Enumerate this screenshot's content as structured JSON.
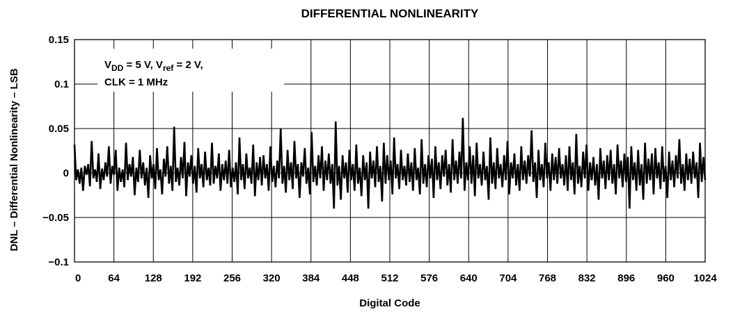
{
  "chart_data": {
    "type": "line",
    "title": "DIFFERENTIAL NONLINEARITY",
    "xlabel": "Digital Code",
    "ylabel": "DNL – Differential Nonlinearity – LSB",
    "xlim": [
      0,
      1024
    ],
    "ylim": [
      -0.1,
      0.15
    ],
    "x_ticks": [
      0,
      64,
      128,
      192,
      256,
      320,
      384,
      448,
      512,
      576,
      640,
      704,
      768,
      832,
      896,
      960,
      1024
    ],
    "x_tick_labels": [
      "0",
      "64",
      "128",
      "192",
      "256",
      "320",
      "384",
      "448",
      "512",
      "576",
      "640",
      "704",
      "768",
      "832",
      "896",
      "960",
      "1024"
    ],
    "y_ticks": [
      0.15,
      0.1,
      0.05,
      0,
      -0.05,
      -0.1
    ],
    "y_tick_labels": [
      "0.15",
      "0.1",
      "0.05",
      "0",
      "−0.05",
      "−0.1"
    ],
    "grid": true,
    "annotation": {
      "line1": {
        "v1": "V",
        "sub1": "DD",
        "mid": " = 5 V, V",
        "sub2": "ref",
        "end": " = 2 V,"
      },
      "line2": "CLK = 1 MHz"
    },
    "series": [
      {
        "values": [
          0.032,
          -0.008,
          0.004,
          -0.012,
          0.006,
          -0.02,
          0.008,
          -0.002,
          0.01,
          -0.015,
          0.036,
          -0.006,
          0.004,
          -0.01,
          0.022,
          -0.018,
          0.005,
          -0.008,
          0.012,
          -0.004,
          0.03,
          -0.012,
          0.008,
          -0.002,
          0.026,
          -0.02,
          0.006,
          -0.01,
          0.004,
          -0.016,
          0.034,
          -0.008,
          0.01,
          -0.004,
          0.018,
          -0.025,
          0.006,
          -0.01,
          0.026,
          -0.006,
          0.012,
          -0.014,
          0.006,
          -0.028,
          0.02,
          -0.006,
          0.01,
          -0.018,
          0.028,
          -0.008,
          0.004,
          -0.024,
          0.016,
          -0.004,
          0.03,
          -0.012,
          0.008,
          -0.02,
          0.052,
          -0.01,
          0.006,
          -0.014,
          0.018,
          -0.006,
          0.035,
          -0.026,
          0.012,
          -0.004,
          0.02,
          -0.012,
          0.008,
          -0.022,
          0.028,
          -0.006,
          0.01,
          -0.016,
          0.024,
          -0.008,
          0.006,
          -0.014,
          0.034,
          -0.012,
          0.008,
          -0.006,
          0.022,
          -0.02,
          0.01,
          -0.008,
          0.014,
          -0.012,
          0.026,
          -0.016,
          0.006,
          -0.01,
          0.012,
          -0.024,
          0.04,
          -0.008,
          0.01,
          -0.018,
          0.022,
          -0.006,
          0.006,
          -0.012,
          0.032,
          -0.026,
          0.012,
          -0.008,
          0.018,
          -0.014,
          0.02,
          -0.006,
          0.01,
          -0.02,
          0.03,
          -0.01,
          0.008,
          -0.016,
          0.014,
          -0.006,
          0.05,
          -0.012,
          0.008,
          -0.022,
          0.026,
          -0.008,
          0.012,
          -0.018,
          0.036,
          -0.006,
          0.01,
          -0.028,
          0.012,
          -0.004,
          0.028,
          -0.012,
          0.006,
          -0.024,
          0.046,
          -0.01,
          0.008,
          -0.014,
          0.02,
          -0.006,
          0.03,
          -0.02,
          0.014,
          -0.008,
          0.022,
          -0.012,
          0.01,
          -0.04,
          0.058,
          -0.014,
          0.008,
          -0.03,
          0.02,
          -0.006,
          0.012,
          -0.022,
          0.026,
          -0.008,
          0.01,
          -0.02,
          0.032,
          -0.012,
          0.006,
          -0.026,
          0.02,
          -0.008,
          0.012,
          -0.04,
          0.024,
          -0.006,
          0.014,
          -0.016,
          0.03,
          -0.01,
          0.008,
          -0.032,
          0.034,
          -0.012,
          0.02,
          -0.008,
          0.014,
          -0.024,
          0.04,
          -0.006,
          0.01,
          -0.018,
          0.026,
          -0.008,
          0.008,
          -0.014,
          0.022,
          -0.01,
          0.012,
          -0.02,
          0.028,
          -0.008,
          0.006,
          -0.024,
          0.038,
          -0.012,
          0.01,
          -0.016,
          0.02,
          -0.006,
          0.016,
          -0.028,
          0.03,
          -0.008,
          0.012,
          -0.018,
          0.02,
          -0.004,
          0.026,
          -0.014,
          0.01,
          -0.022,
          0.038,
          -0.008,
          0.014,
          -0.012,
          0.024,
          -0.006,
          0.062,
          -0.02,
          0.012,
          -0.008,
          0.03,
          -0.012,
          0.02,
          -0.026,
          0.034,
          -0.006,
          0.01,
          -0.014,
          0.024,
          -0.008,
          0.008,
          -0.03,
          0.04,
          -0.012,
          0.012,
          -0.018,
          0.028,
          -0.006,
          0.01,
          -0.016,
          0.02,
          -0.008,
          0.036,
          -0.024,
          0.012,
          -0.006,
          0.022,
          -0.014,
          0.01,
          -0.02,
          0.03,
          -0.008,
          0.014,
          -0.012,
          0.02,
          -0.004,
          0.048,
          -0.01,
          0.012,
          -0.028,
          0.026,
          -0.008,
          0.01,
          -0.016,
          0.034,
          -0.006,
          0.012,
          -0.02,
          0.022,
          -0.008,
          0.018,
          -0.012,
          0.028,
          -0.006,
          0.01,
          -0.014,
          0.02,
          -0.02,
          0.03,
          -0.008,
          0.012,
          -0.024,
          0.044,
          -0.012,
          0.008,
          -0.016,
          0.024,
          -0.006,
          0.032,
          -0.02,
          0.012,
          -0.008,
          0.018,
          -0.014,
          0.01,
          -0.03,
          0.028,
          -0.006,
          0.014,
          -0.018,
          0.02,
          -0.008,
          0.026,
          -0.012,
          0.01,
          -0.024,
          0.032,
          -0.006,
          0.014,
          -0.016,
          0.022,
          -0.01,
          0.018,
          -0.04,
          0.03,
          -0.008,
          0.012,
          -0.02,
          0.026,
          -0.014,
          0.01,
          -0.03,
          0.034,
          -0.012,
          0.016,
          -0.008,
          0.022,
          -0.024,
          0.028,
          -0.006,
          0.012,
          -0.018,
          0.03,
          -0.01,
          0.008,
          -0.028,
          0.024,
          -0.008,
          0.014,
          -0.016,
          0.02,
          -0.006,
          0.038,
          -0.012,
          0.01,
          -0.02,
          0.022,
          -0.008,
          0.016,
          -0.012,
          0.024,
          -0.006,
          0.012,
          -0.028,
          0.034,
          -0.01,
          0.018,
          -0.008
        ]
      }
    ]
  }
}
